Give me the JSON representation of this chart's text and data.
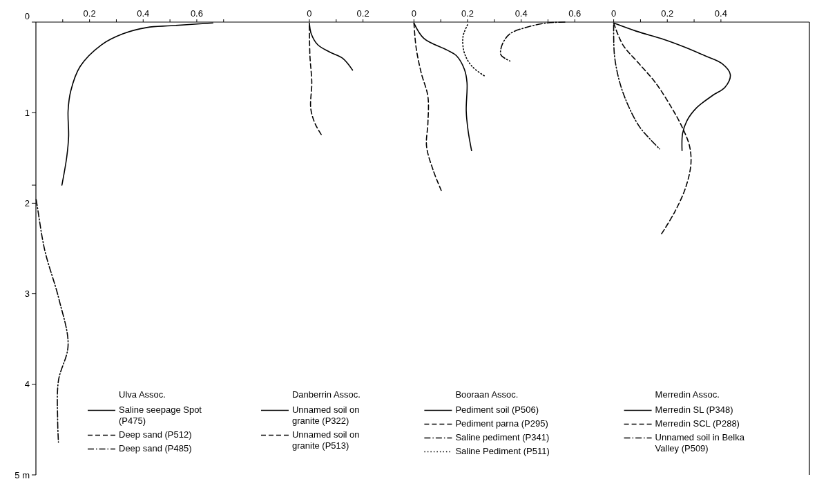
{
  "chart_data": [
    {
      "type": "line",
      "legend_title": "Ulva Assoc.",
      "legend": "bottom",
      "grid": false,
      "xlim": [
        0,
        1.02
      ],
      "xticks": [
        {
          "value": 0.1,
          "label": null
        },
        0.2,
        {
          "value": 0.3,
          "label": null
        },
        0.4,
        {
          "value": 0.5,
          "label": null
        },
        0.6,
        {
          "value": 0.7,
          "label": null
        }
      ],
      "ylim": [
        5,
        0
      ],
      "yticks": [
        0,
        1,
        {
          "value": 1.8,
          "label": null
        },
        2,
        3,
        4,
        {
          "value": 5,
          "label": "5 m"
        }
      ],
      "series": [
        {
          "name": "Saline seepage Spot (P475)",
          "color": "#000000",
          "line_style": "solid",
          "x": [
            0.66,
            0.504,
            0.414,
            0.324,
            0.245,
            0.165,
            0.13,
            0.12,
            0.122,
            0.115,
            0.097
          ],
          "values": [
            0.01,
            0.04,
            0.06,
            0.13,
            0.25,
            0.49,
            0.76,
            0.98,
            1.26,
            1.49,
            1.8
          ]
        },
        {
          "name": "Deep sand (P512)",
          "color": "#000000",
          "line_style": "dashed"
        },
        {
          "name": "Deep sand (P485)",
          "color": "#000000",
          "line_style": "dashdot",
          "x": [
            0.001,
            0.007,
            0.033,
            0.086,
            0.12,
            0.084,
            0.081,
            0.084
          ],
          "values": [
            1.96,
            2.07,
            2.52,
            3.06,
            3.57,
            3.96,
            4.39,
            4.64
          ]
        }
      ]
    },
    {
      "type": "line",
      "legend_title": "Danberrin Assoc.",
      "legend": "bottom",
      "grid": false,
      "tick_labels": "x",
      "xlim": [
        0,
        0.39
      ],
      "xticks": [
        0,
        {
          "value": 0.1,
          "label": null
        },
        0.2
      ],
      "ylim": [
        5,
        0
      ],
      "series": [
        {
          "name": "Unnamed soil on granite (P322)",
          "color": "#000000",
          "line_style": "solid",
          "x": [
            0,
            0.007,
            0.031,
            0.075,
            0.124,
            0.161
          ],
          "values": [
            0.01,
            0.13,
            0.25,
            0.33,
            0.4,
            0.53
          ]
        },
        {
          "name": "Unnamed soil on granite (P513)",
          "color": "#000000",
          "line_style": "dashed",
          "x": [
            0,
            0.002,
            0.009,
            0.005,
            0.021,
            0.046
          ],
          "values": [
            0.04,
            0.37,
            0.67,
            0.95,
            1.12,
            1.25
          ]
        }
      ]
    },
    {
      "type": "line",
      "legend_title": "Booraan Assoc.",
      "legend": "bottom",
      "grid": false,
      "tick_labels": "x",
      "xlim": [
        0,
        0.745
      ],
      "xticks": [
        0,
        {
          "value": 0.1,
          "label": null
        },
        0.2,
        {
          "value": 0.3,
          "label": null
        },
        0.4,
        {
          "value": 0.5,
          "label": null
        },
        0.6
      ],
      "ylim": [
        5,
        0
      ],
      "series": [
        {
          "name": "Pediment soil (P506)",
          "color": "#000000",
          "line_style": "solid",
          "x": [
            0,
            0.037,
            0.124,
            0.158,
            0.188,
            0.198,
            0.195,
            0.202,
            0.215
          ],
          "values": [
            0.01,
            0.18,
            0.31,
            0.37,
            0.52,
            0.67,
            0.98,
            1.2,
            1.42
          ]
        },
        {
          "name": "Pediment parna (P295)",
          "color": "#000000",
          "line_style": "dashed",
          "x": [
            0,
            0.008,
            0.027,
            0.052,
            0.052,
            0.047,
            0.071,
            0.102
          ],
          "values": [
            0.01,
            0.28,
            0.56,
            0.82,
            1.12,
            1.37,
            1.63,
            1.86
          ]
        },
        {
          "name": "Saline pediment (P341)",
          "color": "#000000",
          "line_style": "dashdot",
          "x": [
            0.563,
            0.495,
            0.417,
            0.358,
            0.329,
            0.324,
            0.339,
            0.358
          ],
          "values": [
            0,
            0.01,
            0.06,
            0.13,
            0.25,
            0.36,
            0.4,
            0.43
          ]
        },
        {
          "name": "Saline Pediment (P511)",
          "color": "#000000",
          "line_style": "dotted",
          "x": [
            0.2,
            0.183,
            0.188,
            0.217,
            0.266
          ],
          "values": [
            0.03,
            0.16,
            0.34,
            0.49,
            0.6
          ]
        }
      ]
    },
    {
      "type": "line",
      "legend_title": "Merredin Assoc.",
      "legend": "bottom",
      "grid": false,
      "tick_labels": "x",
      "xlim": [
        0,
        0.73
      ],
      "xticks": [
        0,
        {
          "value": 0.1,
          "label": null
        },
        0.2,
        {
          "value": 0.3,
          "label": null
        },
        0.4
      ],
      "ylim": [
        5,
        0
      ],
      "series": [
        {
          "name": "Merredin SL (P348)",
          "color": "#000000",
          "line_style": "solid",
          "x": [
            0,
            0.084,
            0.186,
            0.268,
            0.339,
            0.405,
            0.435,
            0.415,
            0.369,
            0.308,
            0.273,
            0.257,
            0.255
          ],
          "values": [
            0.01,
            0.1,
            0.19,
            0.28,
            0.37,
            0.46,
            0.58,
            0.72,
            0.81,
            0.95,
            1.09,
            1.23,
            1.42
          ]
        },
        {
          "name": "Merredin SCL (P288)",
          "color": "#000000",
          "line_style": "dashed",
          "x": [
            0,
            0.034,
            0.095,
            0.156,
            0.217,
            0.257,
            0.283,
            0.288,
            0.268,
            0.227,
            0.176
          ],
          "values": [
            0.01,
            0.25,
            0.46,
            0.67,
            0.95,
            1.17,
            1.37,
            1.57,
            1.83,
            2.1,
            2.35
          ]
        },
        {
          "name": "Unnamed soil in Belka Valley (P509)",
          "color": "#000000",
          "line_style": "dashdot",
          "x": [
            0,
            0.003,
            0.023,
            0.054,
            0.095,
            0.135,
            0.171
          ],
          "values": [
            0.03,
            0.37,
            0.67,
            0.92,
            1.15,
            1.29,
            1.4
          ]
        }
      ]
    }
  ]
}
